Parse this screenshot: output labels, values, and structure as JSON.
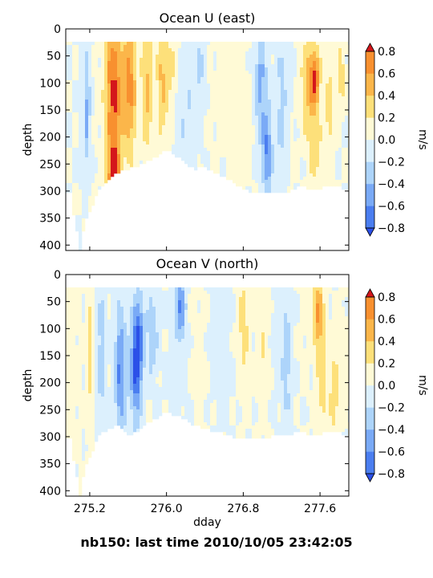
{
  "caption": "nb150: last time 2010/10/05 23:42:05",
  "chart_data": [
    {
      "type": "heatmap",
      "title": "Ocean U (east)",
      "ylabel": "depth",
      "xlabel": "",
      "ylim": [
        410,
        0
      ],
      "xlim": [
        274.95,
        277.9
      ],
      "yticks": [
        "0",
        "50",
        "100",
        "150",
        "200",
        "250",
        "300",
        "350",
        "400"
      ],
      "xticks": [],
      "colorbar": {
        "label": "m/s",
        "levels": [
          -0.8,
          -0.6,
          -0.4,
          -0.2,
          0.0,
          0.2,
          0.4,
          0.6,
          0.8
        ],
        "ticks": [
          "−0.8",
          "−0.6",
          "−0.4",
          "−0.2",
          "0.0",
          "0.2",
          "0.4",
          "0.6",
          "0.8"
        ],
        "colors": [
          "#2b50e8",
          "#4b7ef0",
          "#7aaaf6",
          "#add4fa",
          "#dcf0fd",
          "#fffad6",
          "#fde07a",
          "#fbb64a",
          "#f8902f",
          "#ec5a1c",
          "#d4161b"
        ],
        "extend": "both"
      },
      "coverage": {
        "depth_min": 22,
        "bottom_depth": [
          [
            275.0,
            305
          ],
          [
            275.05,
            360
          ],
          [
            275.1,
            410
          ],
          [
            275.15,
            360
          ],
          [
            275.25,
            320
          ],
          [
            275.3,
            295
          ],
          [
            275.4,
            280
          ],
          [
            275.5,
            265
          ],
          [
            275.6,
            260
          ],
          [
            275.7,
            255
          ],
          [
            275.8,
            245
          ],
          [
            275.9,
            235
          ],
          [
            276.0,
            225
          ],
          [
            276.1,
            235
          ],
          [
            276.2,
            250
          ],
          [
            276.3,
            260
          ],
          [
            276.4,
            255
          ],
          [
            276.5,
            265
          ],
          [
            276.6,
            275
          ],
          [
            276.7,
            285
          ],
          [
            276.8,
            295
          ],
          [
            276.9,
            305
          ],
          [
            277.0,
            305
          ],
          [
            277.1,
            305
          ],
          [
            277.2,
            305
          ],
          [
            277.3,
            300
          ],
          [
            277.4,
            290
          ],
          [
            277.5,
            300
          ],
          [
            277.6,
            295
          ],
          [
            277.7,
            290
          ],
          [
            277.8,
            290
          ],
          [
            277.85,
            300
          ]
        ]
      },
      "field": {
        "blobs": [
          [
            275.17,
            150,
            0.035,
            110,
            -0.45
          ],
          [
            275.45,
            120,
            0.09,
            150,
            0.85
          ],
          [
            275.45,
            280,
            0.06,
            60,
            0.8
          ],
          [
            275.62,
            100,
            0.07,
            140,
            0.65
          ],
          [
            275.8,
            110,
            0.06,
            120,
            0.45
          ],
          [
            275.95,
            100,
            0.05,
            110,
            0.4
          ],
          [
            276.05,
            80,
            0.08,
            90,
            0.25
          ],
          [
            276.2,
            160,
            0.12,
            120,
            -0.2
          ],
          [
            276.35,
            70,
            0.05,
            60,
            -0.25
          ],
          [
            276.55,
            130,
            0.15,
            130,
            0.05
          ],
          [
            276.75,
            150,
            0.12,
            130,
            0.12
          ],
          [
            276.98,
            100,
            0.06,
            110,
            -0.45
          ],
          [
            277.05,
            230,
            0.05,
            80,
            -0.6
          ],
          [
            277.2,
            150,
            0.08,
            150,
            -0.25
          ],
          [
            277.3,
            200,
            0.06,
            90,
            0.05
          ],
          [
            277.48,
            100,
            0.08,
            90,
            0.45
          ],
          [
            277.55,
            90,
            0.05,
            50,
            0.65
          ],
          [
            277.55,
            220,
            0.07,
            80,
            0.3
          ],
          [
            277.7,
            150,
            0.05,
            110,
            0.3
          ],
          [
            277.82,
            80,
            0.04,
            60,
            0.35
          ]
        ]
      }
    },
    {
      "type": "heatmap",
      "title": "Ocean V (north)",
      "ylabel": "depth",
      "xlabel": "dday",
      "ylim": [
        410,
        0
      ],
      "xlim": [
        274.95,
        277.9
      ],
      "yticks": [
        "0",
        "50",
        "100",
        "150",
        "200",
        "250",
        "300",
        "350",
        "400"
      ],
      "xticks": [
        "275.2",
        "276.0",
        "276.8",
        "277.6"
      ],
      "colorbar": {
        "label": "m/s",
        "levels": [
          -0.8,
          -0.6,
          -0.4,
          -0.2,
          0.0,
          0.2,
          0.4,
          0.6,
          0.8
        ],
        "ticks": [
          "−0.8",
          "−0.6",
          "−0.4",
          "−0.2",
          "0.0",
          "0.2",
          "0.4",
          "0.6",
          "0.8"
        ],
        "colors": [
          "#2b50e8",
          "#4b7ef0",
          "#7aaaf6",
          "#add4fa",
          "#dcf0fd",
          "#fffad6",
          "#fde07a",
          "#fbb64a",
          "#f8902f",
          "#ec5a1c",
          "#d4161b"
        ],
        "extend": "both"
      },
      "coverage": {
        "depth_min": 22,
        "bottom_depth": [
          [
            275.0,
            305
          ],
          [
            275.05,
            360
          ],
          [
            275.1,
            410
          ],
          [
            275.15,
            360
          ],
          [
            275.25,
            320
          ],
          [
            275.3,
            295
          ],
          [
            275.4,
            285
          ],
          [
            275.5,
            280
          ],
          [
            275.6,
            300
          ],
          [
            275.7,
            290
          ],
          [
            275.8,
            275
          ],
          [
            275.9,
            265
          ],
          [
            276.0,
            255
          ],
          [
            276.1,
            260
          ],
          [
            276.2,
            270
          ],
          [
            276.3,
            280
          ],
          [
            276.4,
            285
          ],
          [
            276.5,
            290
          ],
          [
            276.6,
            295
          ],
          [
            276.7,
            300
          ],
          [
            276.8,
            305
          ],
          [
            276.9,
            305
          ],
          [
            277.0,
            305
          ],
          [
            277.1,
            300
          ],
          [
            277.2,
            300
          ],
          [
            277.3,
            295
          ],
          [
            277.4,
            290
          ],
          [
            277.5,
            300
          ],
          [
            277.6,
            295
          ],
          [
            277.7,
            290
          ],
          [
            277.8,
            290
          ],
          [
            277.85,
            300
          ]
        ]
      },
      "field": {
        "blobs": [
          [
            275.0,
            180,
            0.08,
            160,
            0.12
          ],
          [
            275.2,
            150,
            0.04,
            150,
            0.25
          ],
          [
            275.32,
            150,
            0.05,
            140,
            -0.3
          ],
          [
            275.52,
            180,
            0.06,
            120,
            -0.65
          ],
          [
            275.68,
            170,
            0.06,
            100,
            -0.8
          ],
          [
            275.72,
            110,
            0.05,
            80,
            -0.45
          ],
          [
            275.85,
            110,
            0.06,
            80,
            -0.35
          ],
          [
            276.15,
            60,
            0.05,
            60,
            -0.6
          ],
          [
            276.1,
            200,
            0.1,
            140,
            -0.1
          ],
          [
            276.35,
            150,
            0.1,
            130,
            0.08
          ],
          [
            276.55,
            120,
            0.12,
            120,
            -0.12
          ],
          [
            276.8,
            100,
            0.06,
            110,
            0.3
          ],
          [
            277.0,
            150,
            0.06,
            120,
            0.2
          ],
          [
            277.15,
            120,
            0.05,
            100,
            -0.15
          ],
          [
            277.25,
            150,
            0.05,
            120,
            -0.35
          ],
          [
            277.45,
            120,
            0.06,
            100,
            0.05
          ],
          [
            277.58,
            70,
            0.05,
            60,
            0.6
          ],
          [
            277.62,
            200,
            0.06,
            120,
            0.3
          ],
          [
            277.75,
            220,
            0.05,
            80,
            0.35
          ],
          [
            277.85,
            150,
            0.05,
            100,
            0.1
          ]
        ]
      }
    }
  ]
}
